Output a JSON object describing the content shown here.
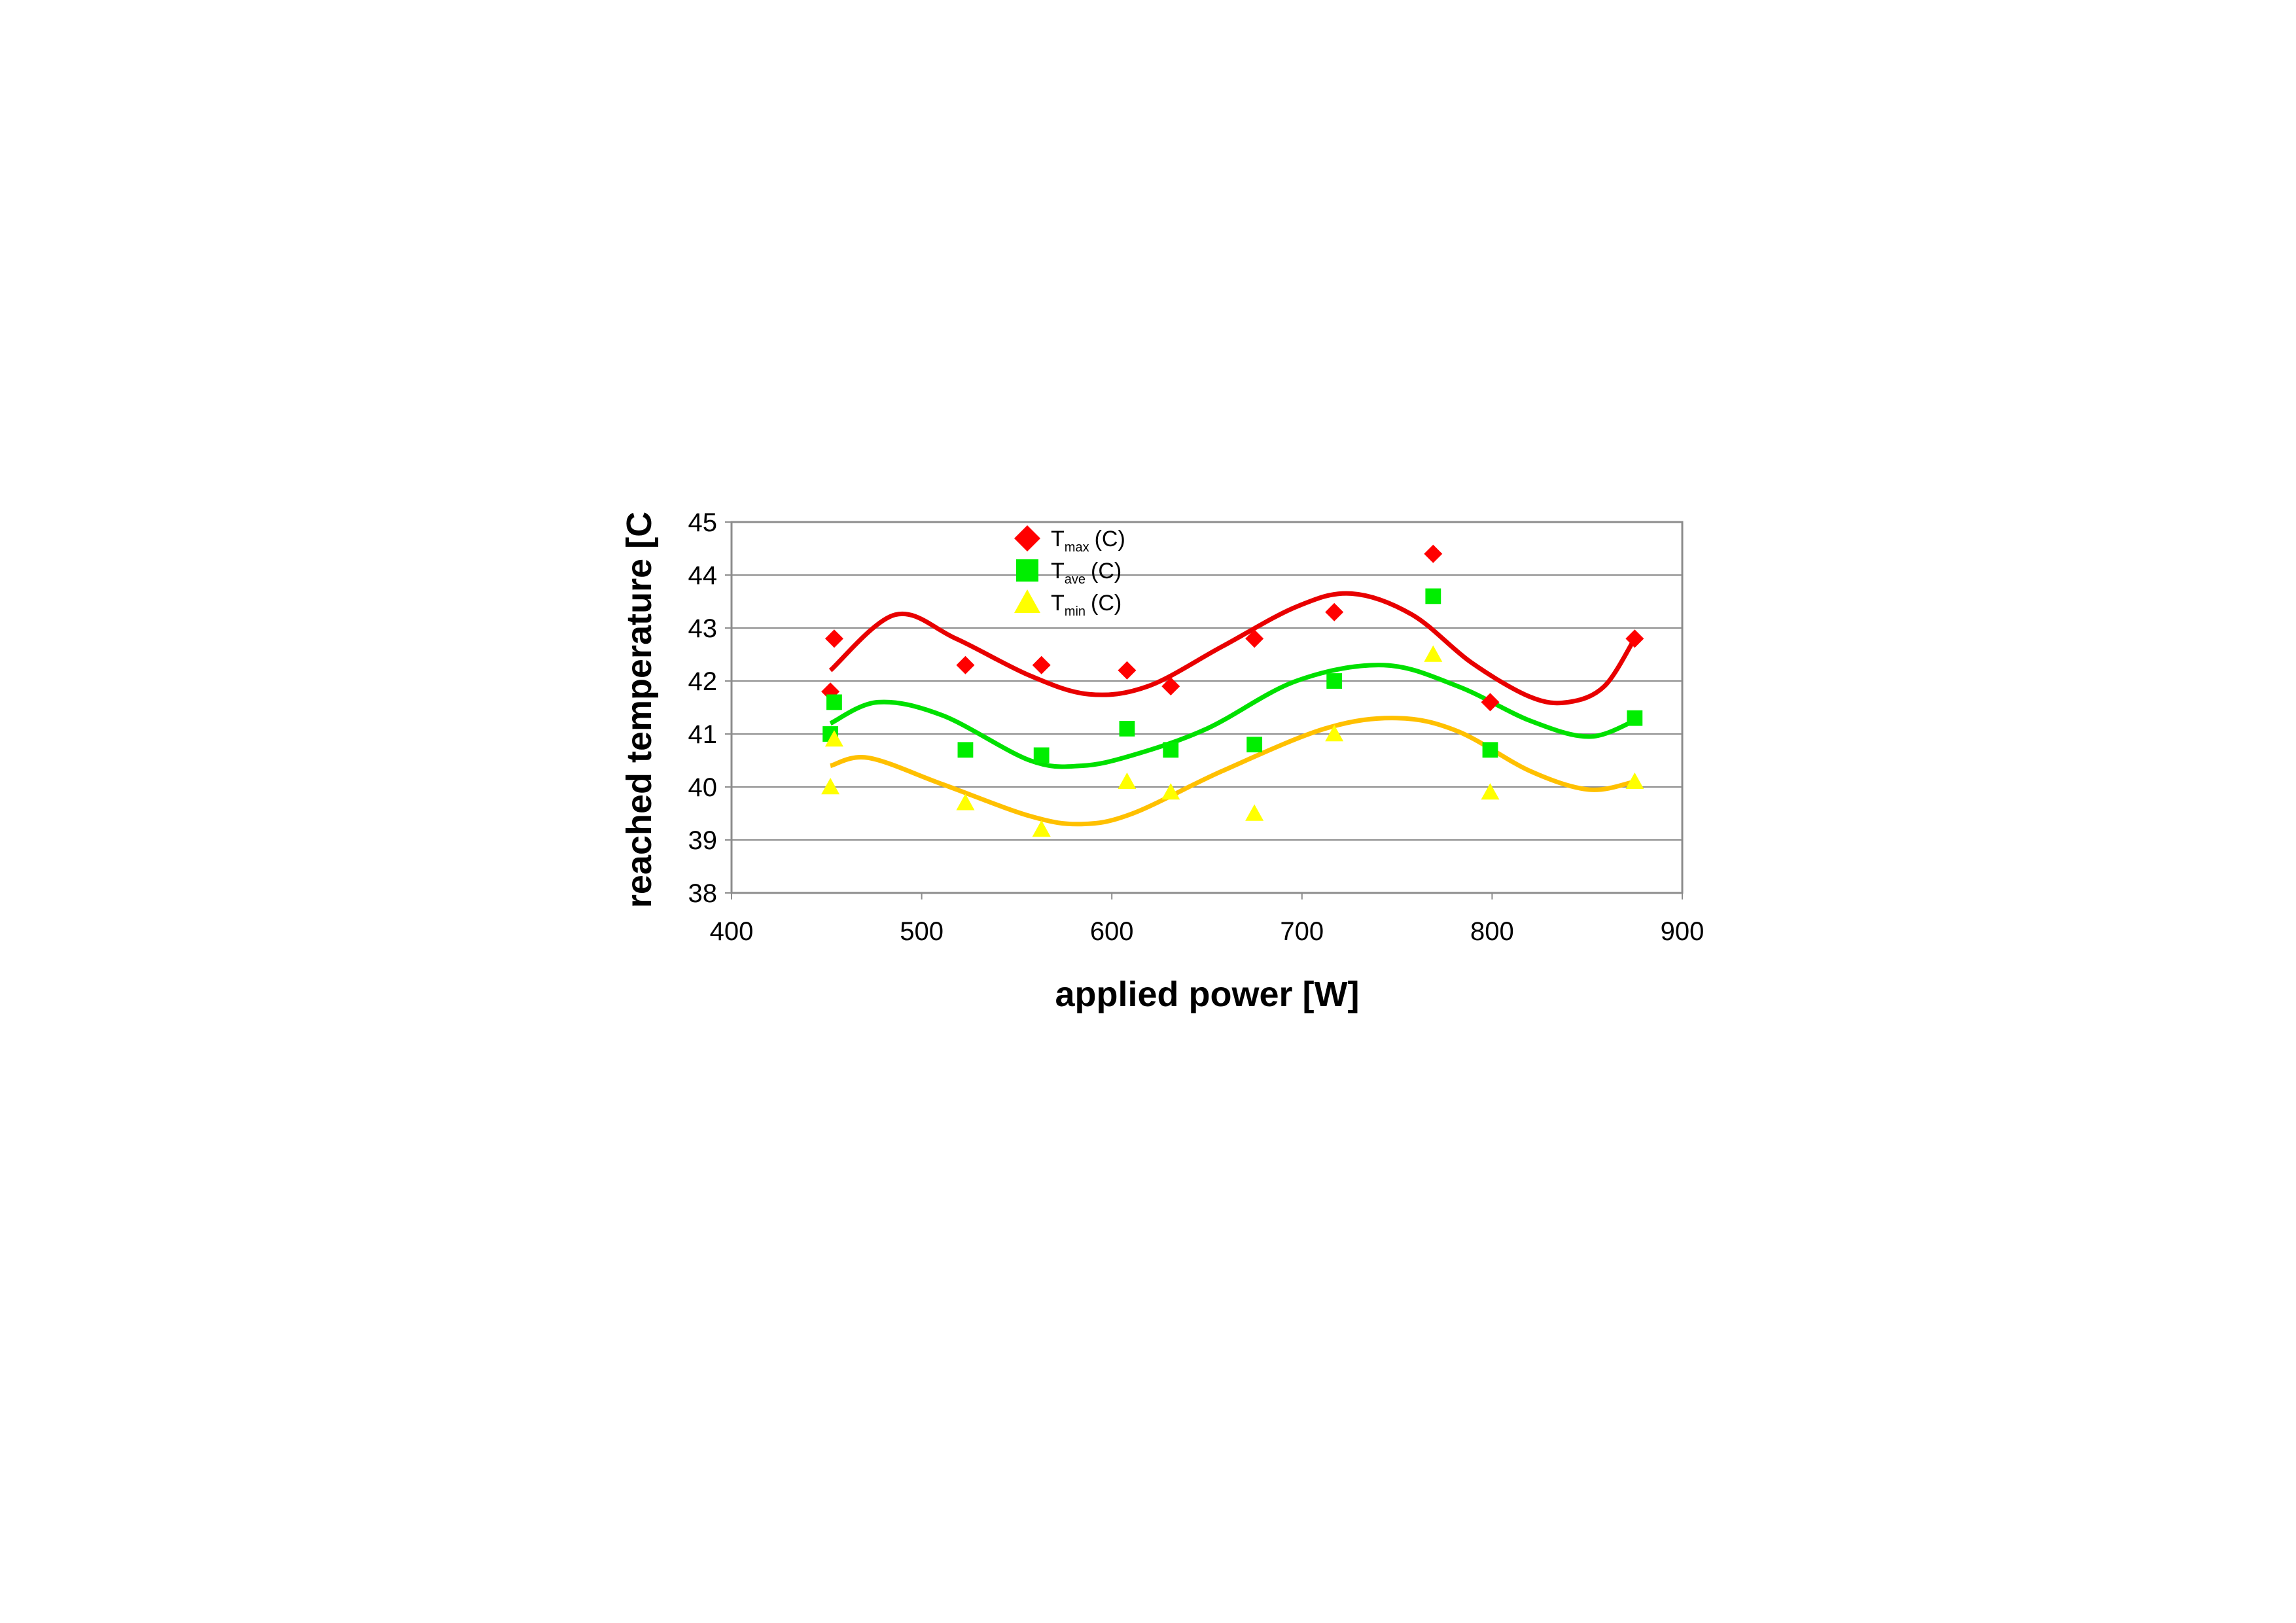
{
  "chart_data": {
    "type": "scatter",
    "x_label": "applied power [W]",
    "y_label": "reached temperature [C",
    "xlim": [
      400,
      900
    ],
    "xticks": [
      400,
      500,
      600,
      700,
      800,
      900
    ],
    "ylim": [
      38,
      45
    ],
    "yticks": [
      38,
      39,
      40,
      41,
      42,
      43,
      44,
      45
    ],
    "grid": true,
    "series": [
      {
        "name": "T",
        "subscript": "max",
        "suffix": "(C)",
        "color": "#ff0000",
        "marker": "diamond",
        "line_color": "#e80000",
        "x": [
          452,
          454,
          523,
          563,
          608,
          631,
          675,
          717,
          769,
          799,
          875
        ],
        "values": [
          41.8,
          42.8,
          42.3,
          42.3,
          42.2,
          41.9,
          42.8,
          43.3,
          44.4,
          41.6,
          42.8
        ],
        "trend_x": [
          452,
          486,
          518,
          557,
          588,
          619,
          658,
          697,
          726,
          758,
          789,
          820,
          840,
          859,
          875
        ],
        "trend_values": [
          42.2,
          43.25,
          42.8,
          42.1,
          41.75,
          41.9,
          42.65,
          43.4,
          43.65,
          43.25,
          42.35,
          41.7,
          41.6,
          41.9,
          42.8
        ]
      },
      {
        "name": "T",
        "subscript": "ave",
        "suffix": "(C)",
        "color": "#00ee00",
        "marker": "square",
        "line_color": "#00e000",
        "x": [
          452,
          454,
          523,
          563,
          608,
          631,
          675,
          717,
          769,
          799,
          875
        ],
        "values": [
          41.0,
          41.6,
          40.7,
          40.6,
          41.1,
          40.7,
          40.8,
          42.0,
          43.6,
          40.7,
          41.3
        ],
        "trend_x": [
          452,
          477,
          511,
          557,
          584,
          611,
          650,
          697,
          743,
          782,
          820,
          851,
          875
        ],
        "trend_values": [
          41.2,
          41.6,
          41.35,
          40.5,
          40.4,
          40.6,
          41.1,
          42.0,
          42.3,
          41.9,
          41.25,
          40.95,
          41.25
        ]
      },
      {
        "name": "T",
        "subscript": "min",
        "suffix": "(C)",
        "color": "#ffff00",
        "marker": "triangle",
        "line_color": "#ffc000",
        "x": [
          452,
          454,
          523,
          563,
          608,
          631,
          675,
          717,
          769,
          799,
          875
        ],
        "values": [
          40.0,
          40.9,
          39.7,
          39.2,
          40.1,
          39.9,
          39.5,
          41.0,
          42.5,
          39.9,
          40.1
        ],
        "trend_x": [
          452,
          472,
          511,
          557,
          584,
          611,
          658,
          712,
          750,
          782,
          820,
          851,
          875
        ],
        "trend_values": [
          40.4,
          40.55,
          40.05,
          39.45,
          39.3,
          39.5,
          40.3,
          41.1,
          41.3,
          41.05,
          40.3,
          39.95,
          40.1
        ]
      }
    ]
  }
}
